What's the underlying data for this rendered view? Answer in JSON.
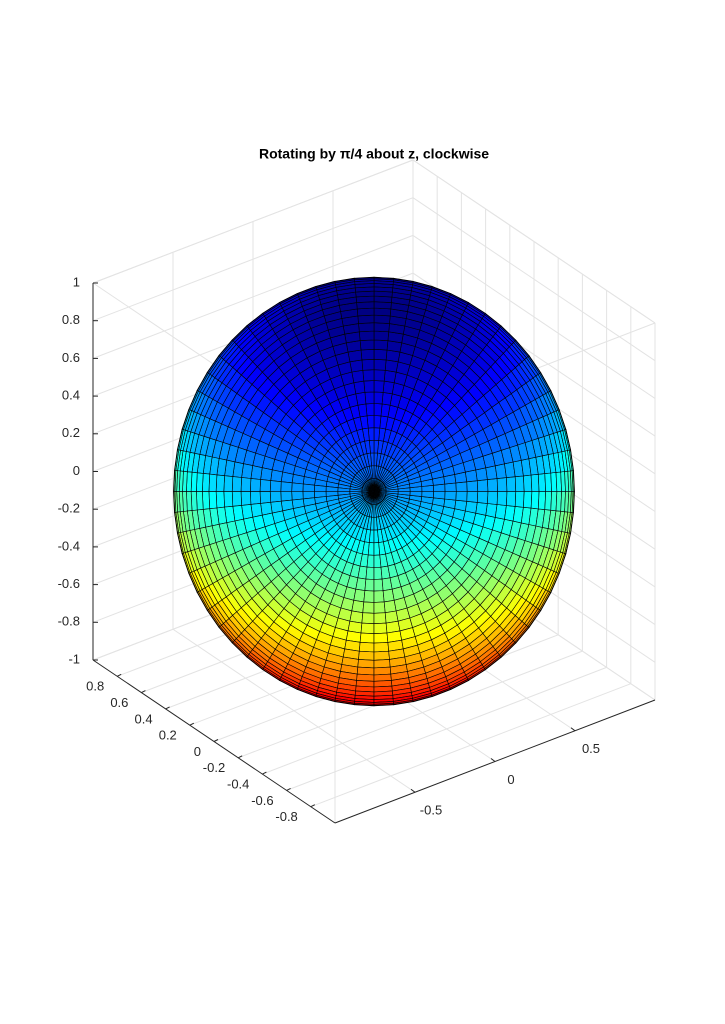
{
  "chart_data": {
    "type": "surface",
    "title": "Rotating by π/4 about z, clockwise",
    "colormap": "jet",
    "grid": true,
    "xlim": [
      -1,
      1
    ],
    "ylim": [
      -1,
      1
    ],
    "zlim": [
      -1,
      1
    ],
    "xticks": [
      -0.5,
      0,
      0.5
    ],
    "yticks": [
      -0.8,
      -0.6,
      -0.4,
      -0.2,
      0,
      0.2,
      0.4,
      0.6,
      0.8
    ],
    "zticks": [
      -1,
      -0.8,
      -0.6,
      -0.4,
      -0.2,
      0,
      0.2,
      0.4,
      0.6,
      0.8,
      1
    ]
  }
}
